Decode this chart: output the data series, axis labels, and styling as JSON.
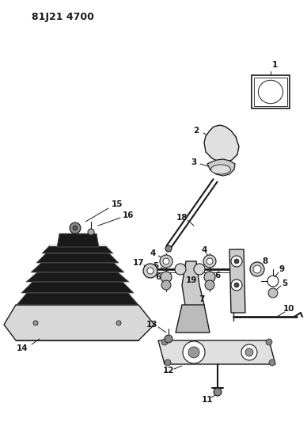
{
  "title": "81J21 4700",
  "bg_color": "#ffffff",
  "lc": "#1a1a1a",
  "figsize": [
    3.88,
    5.33
  ],
  "dpi": 100,
  "title_fontsize": 9,
  "label_fontsize": 7.5
}
